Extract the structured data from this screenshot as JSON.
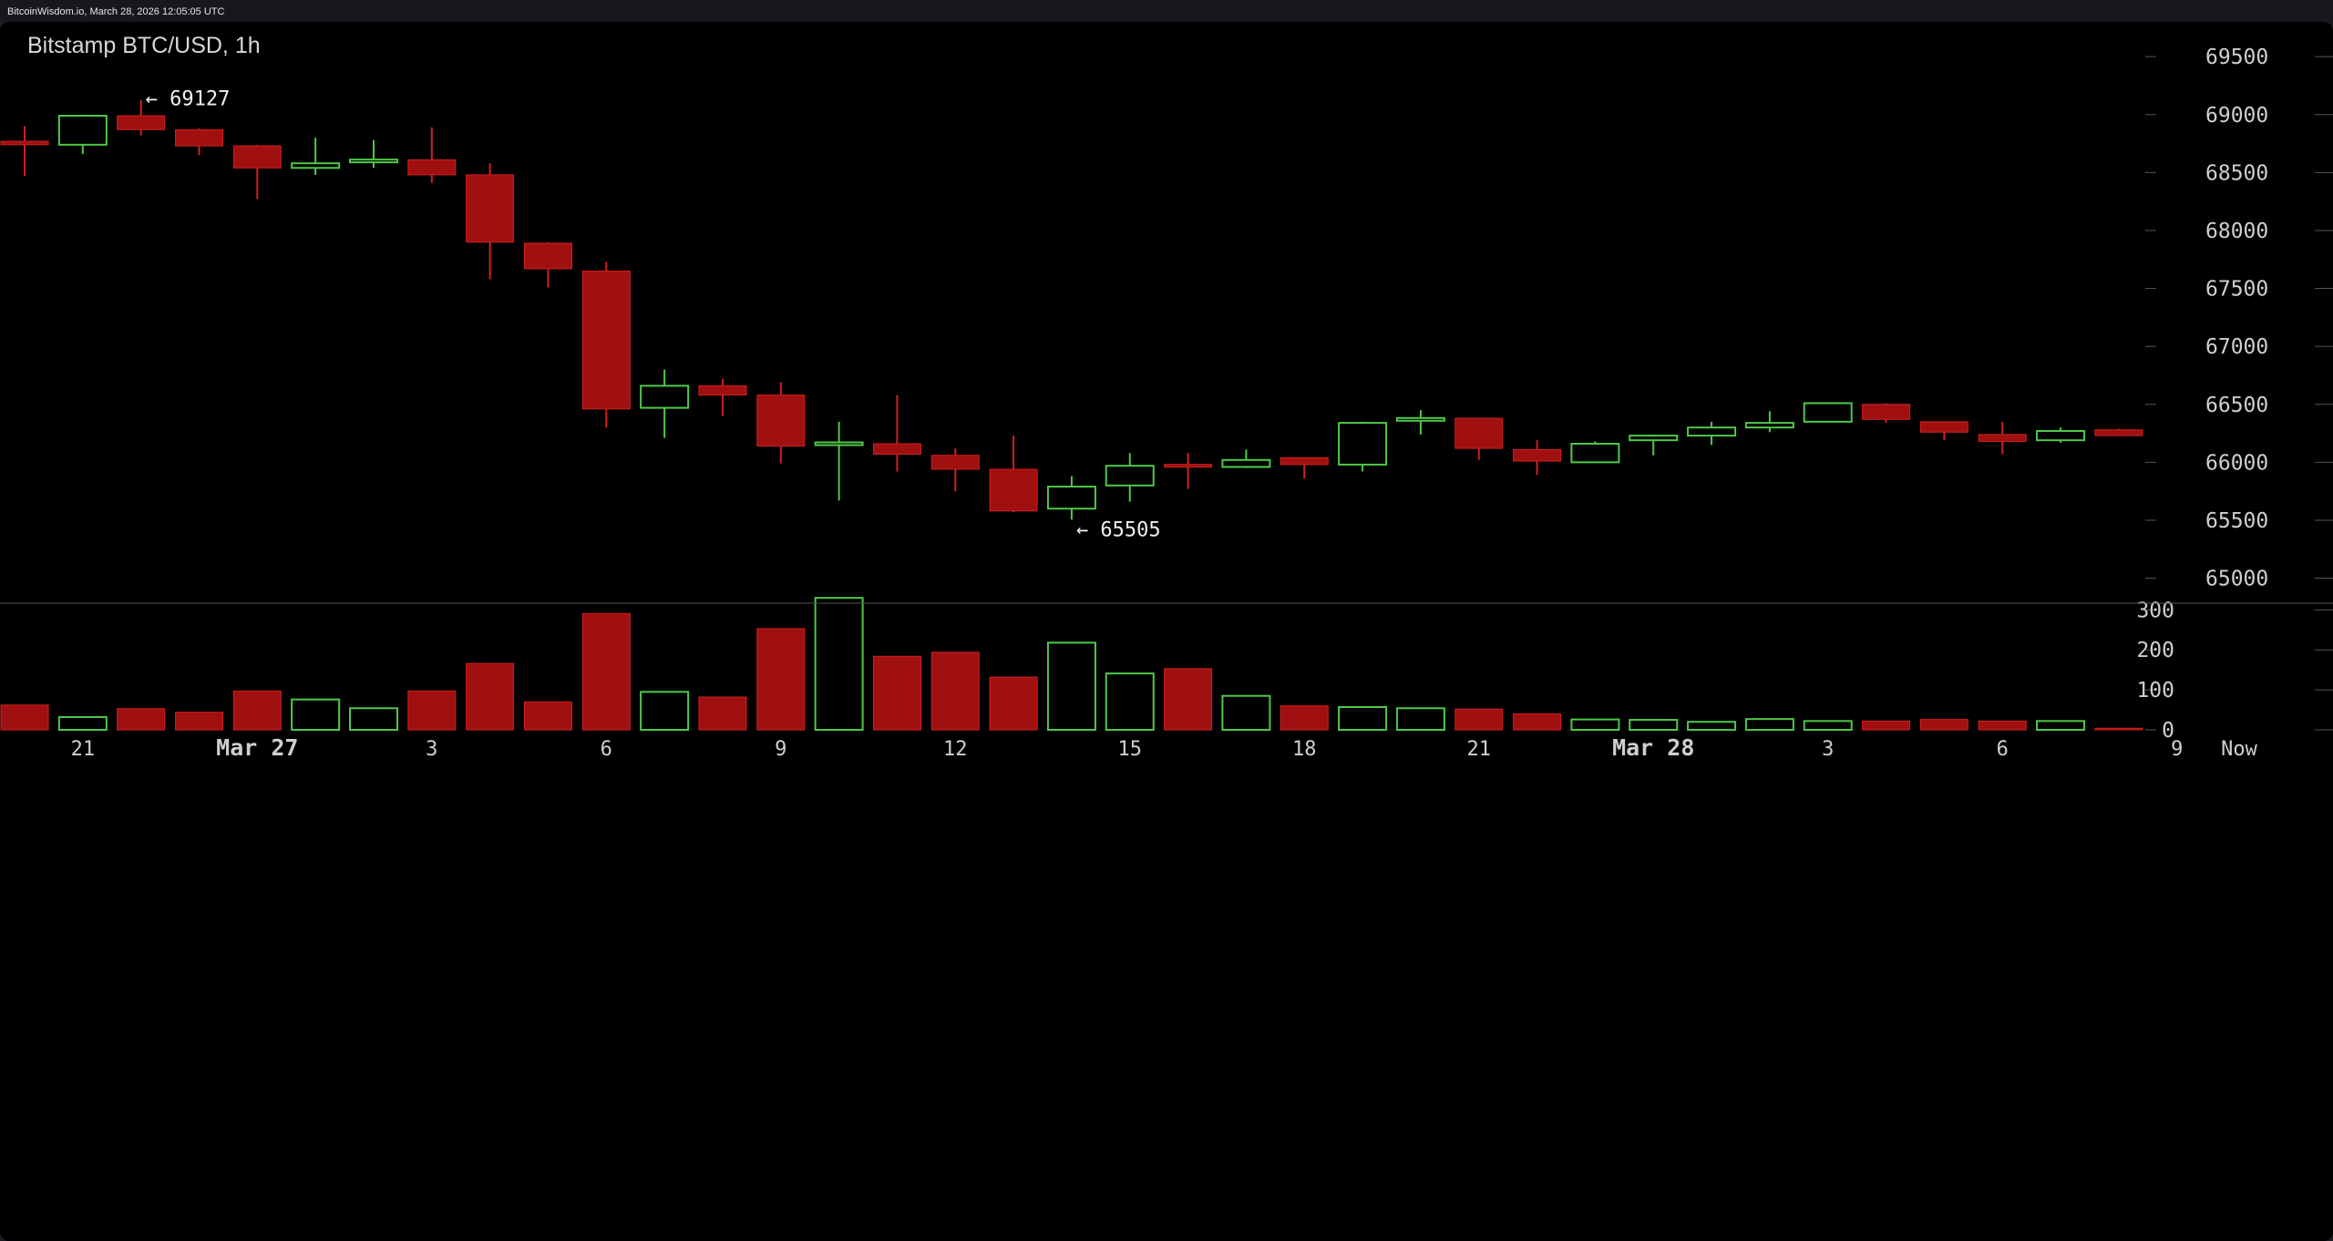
{
  "header": {
    "source_text": "BitcoinWisdom.io, March 28, 2026 12:05:05 UTC"
  },
  "chart_data": {
    "type": "candlestick",
    "title": "Bitstamp BTC/USD, 1h",
    "y_axis": {
      "ticks": [
        65000,
        65500,
        66000,
        66500,
        67000,
        67500,
        68000,
        68500,
        69000,
        69500
      ],
      "range": [
        64800,
        69800
      ],
      "position": "right"
    },
    "volume_axis": {
      "ticks": [
        0,
        100,
        200,
        300
      ],
      "range": [
        0,
        335
      ]
    },
    "x_axis": {
      "ticks": [
        {
          "label": "21",
          "index": 1,
          "major": false
        },
        {
          "label": "Mar 27",
          "index": 4,
          "major": true
        },
        {
          "label": "3",
          "index": 7,
          "major": false
        },
        {
          "label": "6",
          "index": 10,
          "major": false
        },
        {
          "label": "9",
          "index": 13,
          "major": false
        },
        {
          "label": "12",
          "index": 16,
          "major": false
        },
        {
          "label": "15",
          "index": 19,
          "major": false
        },
        {
          "label": "18",
          "index": 22,
          "major": false
        },
        {
          "label": "21",
          "index": 25,
          "major": false
        },
        {
          "label": "Mar 28",
          "index": 28,
          "major": true
        },
        {
          "label": "3",
          "index": 31,
          "major": false
        },
        {
          "label": "6",
          "index": 34,
          "major": false
        },
        {
          "label": "9",
          "index": 37,
          "major": false
        }
      ],
      "now_label": "Now"
    },
    "candles": [
      {
        "o": 68770,
        "h": 68900,
        "l": 68470,
        "c": 68740,
        "v": 62
      },
      {
        "o": 68740,
        "h": 69000,
        "l": 68660,
        "c": 68990,
        "v": 32
      },
      {
        "o": 68990,
        "h": 69127,
        "l": 68820,
        "c": 68870,
        "v": 53
      },
      {
        "o": 68870,
        "h": 68880,
        "l": 68650,
        "c": 68730,
        "v": 44
      },
      {
        "o": 68730,
        "h": 68740,
        "l": 68270,
        "c": 68540,
        "v": 97
      },
      {
        "o": 68540,
        "h": 68800,
        "l": 68480,
        "c": 68580,
        "v": 76
      },
      {
        "o": 68590,
        "h": 68780,
        "l": 68540,
        "c": 68610,
        "v": 54
      },
      {
        "o": 68610,
        "h": 68890,
        "l": 68410,
        "c": 68480,
        "v": 97
      },
      {
        "o": 68480,
        "h": 68580,
        "l": 67580,
        "c": 67900,
        "v": 166
      },
      {
        "o": 67890,
        "h": 67900,
        "l": 67510,
        "c": 67670,
        "v": 70
      },
      {
        "o": 67650,
        "h": 67730,
        "l": 66300,
        "c": 66460,
        "v": 291
      },
      {
        "o": 66470,
        "h": 66800,
        "l": 66210,
        "c": 66660,
        "v": 95
      },
      {
        "o": 66660,
        "h": 66720,
        "l": 66400,
        "c": 66580,
        "v": 82
      },
      {
        "o": 66580,
        "h": 66690,
        "l": 65990,
        "c": 66140,
        "v": 253
      },
      {
        "o": 66150,
        "h": 66350,
        "l": 65670,
        "c": 66170,
        "v": 330
      },
      {
        "o": 66160,
        "h": 66580,
        "l": 65920,
        "c": 66070,
        "v": 184
      },
      {
        "o": 66060,
        "h": 66120,
        "l": 65750,
        "c": 65940,
        "v": 194
      },
      {
        "o": 65940,
        "h": 66230,
        "l": 65570,
        "c": 65580,
        "v": 132
      },
      {
        "o": 65600,
        "h": 65880,
        "l": 65505,
        "c": 65790,
        "v": 218
      },
      {
        "o": 65800,
        "h": 66080,
        "l": 65660,
        "c": 65970,
        "v": 141
      },
      {
        "o": 65980,
        "h": 66080,
        "l": 65770,
        "c": 65960,
        "v": 153
      },
      {
        "o": 65960,
        "h": 66110,
        "l": 65950,
        "c": 66020,
        "v": 85
      },
      {
        "o": 66040,
        "h": 66040,
        "l": 65860,
        "c": 65980,
        "v": 60
      },
      {
        "o": 65980,
        "h": 66350,
        "l": 65920,
        "c": 66340,
        "v": 57
      },
      {
        "o": 66360,
        "h": 66450,
        "l": 66240,
        "c": 66380,
        "v": 54
      },
      {
        "o": 66380,
        "h": 66380,
        "l": 66020,
        "c": 66120,
        "v": 52
      },
      {
        "o": 66110,
        "h": 66190,
        "l": 65890,
        "c": 66010,
        "v": 40
      },
      {
        "o": 66000,
        "h": 66180,
        "l": 66000,
        "c": 66160,
        "v": 26
      },
      {
        "o": 66190,
        "h": 66240,
        "l": 66060,
        "c": 66230,
        "v": 25
      },
      {
        "o": 66230,
        "h": 66350,
        "l": 66150,
        "c": 66300,
        "v": 20
      },
      {
        "o": 66300,
        "h": 66440,
        "l": 66260,
        "c": 66340,
        "v": 27
      },
      {
        "o": 66350,
        "h": 66510,
        "l": 66350,
        "c": 66510,
        "v": 22
      },
      {
        "o": 66500,
        "h": 66510,
        "l": 66340,
        "c": 66370,
        "v": 22
      },
      {
        "o": 66350,
        "h": 66350,
        "l": 66190,
        "c": 66260,
        "v": 26
      },
      {
        "o": 66240,
        "h": 66350,
        "l": 66070,
        "c": 66180,
        "v": 22
      },
      {
        "o": 66190,
        "h": 66300,
        "l": 66170,
        "c": 66270,
        "v": 22
      },
      {
        "o": 66280,
        "h": 66290,
        "l": 66230,
        "c": 66230,
        "v": 4
      }
    ],
    "annotations": [
      {
        "text": "← 69127",
        "candle_index": 2,
        "value": 69127
      },
      {
        "text": "← 65505",
        "candle_index": 18,
        "value": 65505
      }
    ],
    "colors": {
      "up": "#4fc848",
      "down": "#a01010",
      "down_wick": "#d02020",
      "background": "#000000",
      "axis_text": "#cfcfcf",
      "separator": "#555555"
    }
  }
}
